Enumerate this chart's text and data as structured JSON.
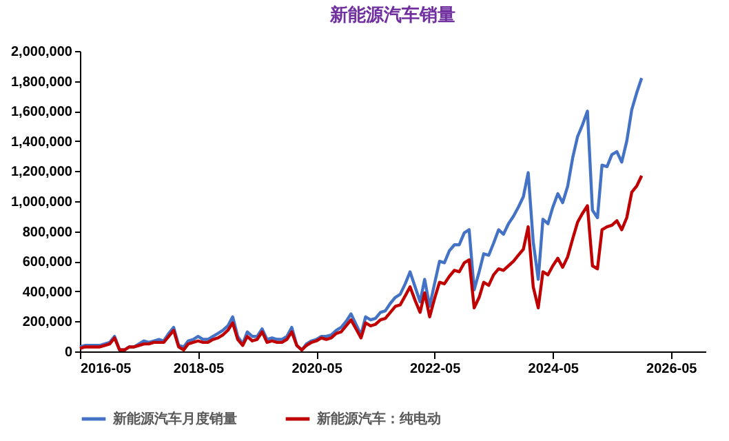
{
  "chart_data": {
    "type": "line",
    "title": "新能源汽车销量",
    "x": [
      "2016-05",
      "2016-06",
      "2016-07",
      "2016-08",
      "2016-09",
      "2016-10",
      "2016-11",
      "2016-12",
      "2017-01",
      "2017-02",
      "2017-03",
      "2017-04",
      "2017-05",
      "2017-06",
      "2017-07",
      "2017-08",
      "2017-09",
      "2017-10",
      "2017-11",
      "2017-12",
      "2018-01",
      "2018-02",
      "2018-03",
      "2018-04",
      "2018-05",
      "2018-06",
      "2018-07",
      "2018-08",
      "2018-09",
      "2018-10",
      "2018-11",
      "2018-12",
      "2019-01",
      "2019-02",
      "2019-03",
      "2019-04",
      "2019-05",
      "2019-06",
      "2019-07",
      "2019-08",
      "2019-09",
      "2019-10",
      "2019-11",
      "2019-12",
      "2020-01",
      "2020-02",
      "2020-03",
      "2020-04",
      "2020-05",
      "2020-06",
      "2020-07",
      "2020-08",
      "2020-09",
      "2020-10",
      "2020-11",
      "2020-12",
      "2021-01",
      "2021-02",
      "2021-03",
      "2021-04",
      "2021-05",
      "2021-06",
      "2021-07",
      "2021-08",
      "2021-09",
      "2021-10",
      "2021-11",
      "2021-12",
      "2022-01",
      "2022-02",
      "2022-03",
      "2022-04",
      "2022-05",
      "2022-06",
      "2022-07",
      "2022-08",
      "2022-09",
      "2022-10",
      "2022-11",
      "2022-12",
      "2023-01",
      "2023-02",
      "2023-03",
      "2023-04",
      "2023-05",
      "2023-06",
      "2023-07",
      "2023-08",
      "2023-09",
      "2023-10",
      "2023-11",
      "2023-12",
      "2024-01",
      "2024-02",
      "2024-03",
      "2024-04",
      "2024-05",
      "2024-06",
      "2024-07",
      "2024-08",
      "2024-09",
      "2024-10",
      "2024-11",
      "2024-12",
      "2025-01",
      "2025-02",
      "2025-03",
      "2025-04",
      "2025-05",
      "2025-06",
      "2025-07",
      "2025-08",
      "2025-09",
      "2025-10",
      "2025-11"
    ],
    "series": [
      {
        "name": "新能源汽车月度销量",
        "color": "#4472c4",
        "values": [
          30000,
          40000,
          40000,
          40000,
          40000,
          50000,
          60000,
          100000,
          10000,
          10000,
          30000,
          30000,
          50000,
          70000,
          60000,
          70000,
          80000,
          70000,
          120000,
          160000,
          40000,
          30000,
          70000,
          80000,
          100000,
          80000,
          80000,
          100000,
          120000,
          140000,
          170000,
          230000,
          100000,
          50000,
          130000,
          100000,
          100000,
          150000,
          80000,
          90000,
          80000,
          80000,
          100000,
          160000,
          40000,
          10000,
          50000,
          70000,
          80000,
          100000,
          100000,
          110000,
          140000,
          160000,
          200000,
          250000,
          180000,
          110000,
          230000,
          210000,
          220000,
          260000,
          270000,
          320000,
          360000,
          380000,
          450000,
          530000,
          430000,
          330000,
          480000,
          300000,
          450000,
          600000,
          590000,
          670000,
          710000,
          710000,
          790000,
          810000,
          410000,
          530000,
          650000,
          640000,
          720000,
          810000,
          780000,
          850000,
          900000,
          960000,
          1030000,
          1190000,
          730000,
          480000,
          880000,
          850000,
          960000,
          1050000,
          990000,
          1100000,
          1290000,
          1430000,
          1510000,
          1600000,
          940000,
          890000,
          1240000,
          1230000,
          1310000,
          1330000,
          1260000,
          1400000,
          1610000,
          1720000,
          1820000
        ]
      },
      {
        "name": "新能源汽车：纯电动",
        "color": "#c00000",
        "values": [
          20000,
          30000,
          30000,
          30000,
          30000,
          40000,
          50000,
          90000,
          10000,
          10000,
          30000,
          30000,
          40000,
          50000,
          50000,
          60000,
          60000,
          60000,
          100000,
          140000,
          30000,
          10000,
          50000,
          60000,
          70000,
          60000,
          60000,
          80000,
          90000,
          110000,
          140000,
          190000,
          80000,
          40000,
          100000,
          70000,
          80000,
          130000,
          60000,
          70000,
          60000,
          60000,
          80000,
          130000,
          40000,
          10000,
          40000,
          60000,
          70000,
          90000,
          80000,
          90000,
          120000,
          130000,
          170000,
          210000,
          150000,
          90000,
          190000,
          170000,
          180000,
          210000,
          220000,
          260000,
          300000,
          310000,
          370000,
          430000,
          340000,
          260000,
          390000,
          230000,
          350000,
          460000,
          450000,
          500000,
          540000,
          530000,
          590000,
          610000,
          290000,
          360000,
          460000,
          440000,
          510000,
          550000,
          540000,
          570000,
          600000,
          640000,
          680000,
          830000,
          430000,
          290000,
          530000,
          510000,
          570000,
          620000,
          560000,
          630000,
          750000,
          860000,
          920000,
          970000,
          570000,
          550000,
          810000,
          830000,
          840000,
          870000,
          810000,
          890000,
          1060000,
          1100000,
          1170000
        ]
      }
    ],
    "xlim": [
      "2016-05",
      "2026-12"
    ],
    "xticks": [
      "2016-05",
      "2018-05",
      "2020-05",
      "2022-05",
      "2024-05",
      "2026-05"
    ],
    "ylim": [
      0,
      2000000
    ],
    "yticks": [
      0,
      {
        "value": 200000,
        "label": "200,000"
      },
      {
        "value": 400000,
        "label": "400,000"
      },
      {
        "value": 600000,
        "label": "600,000"
      },
      {
        "value": 800000,
        "label": "800,000"
      },
      {
        "value": 1000000,
        "label": "1,000,000"
      },
      {
        "value": 1200000,
        "label": "1,200,000"
      },
      {
        "value": 1400000,
        "label": "1,400,000"
      },
      {
        "value": 1600000,
        "label": "1,600,000"
      },
      {
        "value": 1800000,
        "label": "1,800,000"
      },
      {
        "value": 2000000,
        "label": "2,000,000"
      }
    ],
    "grid": false,
    "legend": "bottom",
    "marker": "none",
    "line_style": "solid"
  }
}
